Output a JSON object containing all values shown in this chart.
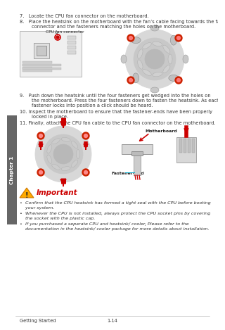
{
  "bg_color": "#ffffff",
  "sidebar_color": "#666666",
  "sidebar_text": "Chapter 1",
  "step7": "7.   Locate the CPU fan connector on the motherboard.",
  "step8_line1": "8.   Place the heatsink on the motherboard with the fan’s cable facing towards the fan",
  "step8_line2": "        connector and the fasteners matching the holes on the motherboard.",
  "cpu_fan_label": "CPU fan connector",
  "step9_line1": "9.   Push down the heatsink until the four fasteners get wedged into the holes on",
  "step9_line2": "        the motherboard. Press the four fasteners down to fasten the heatsink. As each",
  "step9_line3": "        fastener locks into position a click should be heard.",
  "step10_line1": "10. Inspect the motherboard to ensure that the fastener-ends have been properly",
  "step10_line2": "        locked in place.",
  "step11": "11. Finally, attach the CPU fan cable to the CPU fan connector on the motherboard.",
  "motherboard_label": "Motherboard",
  "fastener_label": "Fastener-end",
  "important_title": "Important",
  "bullet1_line1": "  Confirm that the CPU heatsink has formed a tight seal with the CPU before booting",
  "bullet1_line2": "  your system.",
  "bullet2_line1": "  Whenever the CPU is not installed, always protect the CPU socket pins by covering",
  "bullet2_line2": "  the socket with the plastic cap.",
  "bullet3_line1": "  If you purchased a separate CPU and heatsink/ cooler, Please refer to the",
  "bullet3_line2": "  documentation in the heatsink/ cooler package for more details about installation.",
  "footer_left": "Getting Started",
  "footer_right": "1-14",
  "text_color": "#333333",
  "text_fontsize": 4.8,
  "bullet_fontsize": 4.6
}
